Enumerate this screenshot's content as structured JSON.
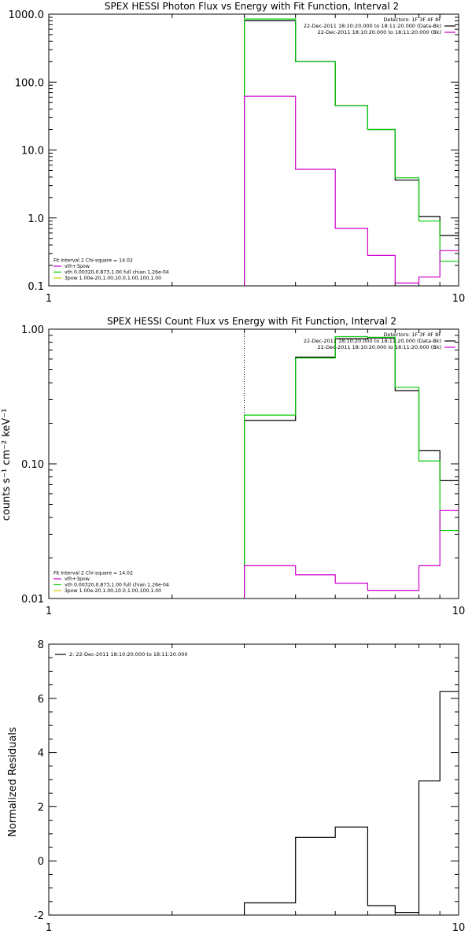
{
  "chart_data": [
    {
      "type": "line",
      "title": "SPEX HESSI Photon Flux vs Energy with Fit Function, Interval 2",
      "ylabel": "",
      "xlabel": "",
      "x_scale": "log",
      "y_scale": "log",
      "xlim": [
        1,
        10
      ],
      "ylim": [
        0.1,
        1000
      ],
      "x_ticks": [
        1,
        10
      ],
      "y_ticks": [
        0.1,
        1.0,
        10.0,
        100.0,
        1000.0
      ],
      "y_tick_labels": [
        "0.1",
        "1.0",
        "10.0",
        "100.0",
        "1000.0"
      ],
      "x_tick_labels": [
        "1",
        "10"
      ],
      "bin_edges": [
        3,
        4,
        5,
        6,
        7,
        8,
        9,
        10
      ],
      "fit_start_line": 3,
      "series": [
        {
          "color": "#000000",
          "values": [
            800,
            200,
            45,
            20,
            3.6,
            1.05,
            0.55
          ]
        },
        {
          "color": "#00cc00",
          "values": [
            850,
            200,
            45,
            20,
            3.9,
            0.9,
            0.23
          ]
        },
        {
          "color": "#cc00cc",
          "values": [
            62,
            5.2,
            0.7,
            0.28,
            0.11,
            0.135,
            0.33
          ]
        }
      ],
      "legend_top": {
        "position": "top-right",
        "lines": [
          {
            "text": "Detectors: 1F 3F 4F 8F",
            "color": ""
          },
          {
            "text": "22-Dec-2011 18:10:20.000 to 18:11:20.000 (Data-Bk)",
            "color": "#000000"
          },
          {
            "text": "22-Dec-2011 18:10:20.000 to 18:11:20.000 (Bk)",
            "color": "#cc00cc"
          }
        ]
      },
      "legend_bottom": {
        "position": "bottom-left",
        "lines": [
          {
            "text": "Fit Interval 2   Chi-square = 14.02",
            "color": ""
          },
          {
            "text": "vth+3pow",
            "color": "#cc00cc"
          },
          {
            "text": "vth 0.00320,0.873,1.00  full chian 1.26e-04",
            "color": "#00cc00"
          },
          {
            "text": "3pow 1.00e-20,1.00,10.0,1.00,100,1.00",
            "color": "#cccc00"
          }
        ]
      }
    },
    {
      "type": "line",
      "title": "SPEX HESSI Count Flux vs Energy with Fit Function, Interval 2",
      "ylabel": "counts s⁻¹ cm⁻² keV⁻¹",
      "xlabel": "",
      "x_scale": "log",
      "y_scale": "log",
      "xlim": [
        1,
        10
      ],
      "ylim": [
        0.01,
        1.0
      ],
      "x_ticks": [
        1,
        10
      ],
      "y_ticks": [
        0.01,
        0.1,
        1.0
      ],
      "y_tick_labels": [
        "0.01",
        "0.10",
        "1.00"
      ],
      "x_tick_labels": [
        "1",
        "10"
      ],
      "bin_edges": [
        3,
        4,
        5,
        6,
        7,
        8,
        9,
        10
      ],
      "fit_start_line": 3,
      "series": [
        {
          "color": "#000000",
          "values": [
            0.21,
            0.62,
            0.85,
            0.86,
            0.35,
            0.125,
            0.075
          ]
        },
        {
          "color": "#00cc00",
          "values": [
            0.23,
            0.61,
            0.88,
            0.87,
            0.37,
            0.105,
            0.032
          ]
        },
        {
          "color": "#cc00cc",
          "values": [
            0.0175,
            0.015,
            0.013,
            0.0115,
            0.0115,
            0.0175,
            0.045
          ]
        }
      ],
      "legend_top": {
        "position": "top-right",
        "lines": [
          {
            "text": "Detectors: 1F 3F 4F 8F",
            "color": ""
          },
          {
            "text": "22-Dec-2011 18:10:20.000 to 18:11:20.000 (Data-Bk)",
            "color": "#000000"
          },
          {
            "text": "22-Dec-2011 18:10:20.000 to 18:11:20.000 (Bk)",
            "color": "#cc00cc"
          }
        ]
      },
      "legend_bottom": {
        "position": "bottom-left",
        "lines": [
          {
            "text": "Fit Interval 2   Chi-square = 14.02",
            "color": ""
          },
          {
            "text": "vth+3pow",
            "color": "#cc00cc"
          },
          {
            "text": "vth 0.00320,0.873,1.00  full chian 1.26e-04",
            "color": "#00cc00"
          },
          {
            "text": "3pow 1.00e-20,1.00,10.0,1.00,100,1.00",
            "color": "#cccc00"
          }
        ]
      }
    },
    {
      "type": "line",
      "title": "",
      "ylabel": "Normalized Residuals",
      "xlabel": "",
      "x_scale": "log",
      "y_scale": "linear",
      "xlim": [
        1,
        10
      ],
      "ylim": [
        -2,
        8
      ],
      "x_ticks": [
        1,
        10
      ],
      "y_ticks": [
        -2,
        0,
        2,
        4,
        6,
        8
      ],
      "y_tick_labels": [
        "-2",
        "0",
        "2",
        "4",
        "6",
        "8"
      ],
      "x_tick_labels": [
        "1",
        "10"
      ],
      "bin_edges": [
        3,
        4,
        5,
        6,
        7,
        8,
        9,
        10
      ],
      "series": [
        {
          "color": "#000000",
          "values": [
            -1.55,
            0.87,
            1.25,
            -1.65,
            -1.9,
            2.95,
            6.25
          ]
        }
      ],
      "legend_top": {
        "position": "top-left",
        "lines": [
          {
            "text": "2: 22-Dec-2011 18:10:20.000 to 18:11:20.000",
            "color": "#000000"
          }
        ]
      }
    }
  ]
}
